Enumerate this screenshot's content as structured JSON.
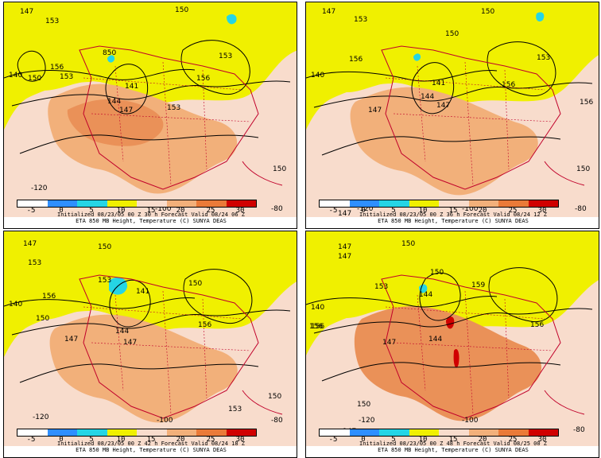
{
  "legend": {
    "ticks": [
      "-5",
      "0",
      "5",
      "10",
      "15",
      "20",
      "25",
      "30"
    ],
    "colors": [
      "#ffffff",
      "#2f8fff",
      "#25d5e5",
      "#f0f000",
      "#f8dccc",
      "#f2b07a",
      "#ea7a38",
      "#d00000"
    ]
  },
  "panels": [
    {
      "caption": "Initialized 08/23/05 00 Z 30 h Forecast Valid 08/24 06 Z",
      "subcaption": "ETA 850 MB Height, Temperature (C) SUNYA DEAS",
      "contour_labels": [
        "147",
        "150",
        "153",
        "156",
        "150",
        "153",
        "141",
        "144",
        "147",
        "153",
        "153",
        "156",
        "150",
        "140",
        "-120",
        "-100",
        "-80",
        "850"
      ]
    },
    {
      "caption": "Initialized 08/23/05 00 Z 36 h Forecast Valid 08/24 12 Z",
      "subcaption": "ETA 850 MB Height, Temperature (C) SUNYA DEAS",
      "contour_labels": [
        "147",
        "150",
        "153",
        "156",
        "150",
        "141",
        "144",
        "147",
        "147",
        "153",
        "156",
        "156",
        "150",
        "140",
        "-120",
        "-100",
        "-80",
        "147"
      ]
    },
    {
      "caption": "Initialized 08/23/05 00 Z 42 h Forecast Valid 08/24 18 Z",
      "subcaption": "ETA 850 MB Height, Temperature (C) SUNYA DEAS",
      "contour_labels": [
        "147",
        "150",
        "153",
        "156",
        "150",
        "141",
        "144",
        "147",
        "147",
        "153",
        "156",
        "153",
        "150",
        "140",
        "-120",
        "-100",
        "-80",
        "150"
      ]
    },
    {
      "caption": "Initialized 08/23/05 00 Z 48 h Forecast Valid 08/25 00 Z",
      "subcaption": "ETA 850 MB Height, Temperature (C) SUNYA DEAS",
      "contour_labels": [
        "147",
        "150",
        "153",
        "156",
        "150",
        "144",
        "144",
        "147",
        "147",
        "159",
        "156",
        "156",
        "150",
        "140",
        "-120",
        "-100",
        "-80",
        "147"
      ]
    }
  ]
}
